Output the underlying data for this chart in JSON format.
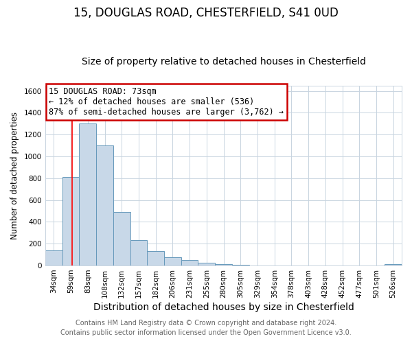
{
  "title": "15, DOUGLAS ROAD, CHESTERFIELD, S41 0UD",
  "subtitle": "Size of property relative to detached houses in Chesterfield",
  "xlabel": "Distribution of detached houses by size in Chesterfield",
  "ylabel": "Number of detached properties",
  "bar_labels": [
    "34sqm",
    "59sqm",
    "83sqm",
    "108sqm",
    "132sqm",
    "157sqm",
    "182sqm",
    "206sqm",
    "231sqm",
    "255sqm",
    "280sqm",
    "305sqm",
    "329sqm",
    "354sqm",
    "378sqm",
    "403sqm",
    "428sqm",
    "452sqm",
    "477sqm",
    "501sqm",
    "526sqm"
  ],
  "bar_values": [
    140,
    810,
    1300,
    1100,
    490,
    235,
    130,
    75,
    50,
    25,
    15,
    5,
    0,
    0,
    0,
    0,
    0,
    0,
    0,
    0,
    10
  ],
  "bar_color": "#c8d8e8",
  "bar_edge_color": "#6699bb",
  "ylim": [
    0,
    1650
  ],
  "yticks": [
    0,
    200,
    400,
    600,
    800,
    1000,
    1200,
    1400,
    1600
  ],
  "annotation_title": "15 DOUGLAS ROAD: 73sqm",
  "annotation_line1": "← 12% of detached houses are smaller (536)",
  "annotation_line2": "87% of semi-detached houses are larger (3,762) →",
  "annotation_box_color": "#ffffff",
  "annotation_box_edge": "#cc0000",
  "footer_line1": "Contains HM Land Registry data © Crown copyright and database right 2024.",
  "footer_line2": "Contains public sector information licensed under the Open Government Licence v3.0.",
  "background_color": "#ffffff",
  "plot_bg_color": "#ffffff",
  "grid_color": "#c8d4e0",
  "title_fontsize": 12,
  "subtitle_fontsize": 10,
  "xlabel_fontsize": 10,
  "ylabel_fontsize": 8.5,
  "tick_fontsize": 7.5,
  "annotation_fontsize": 8.5,
  "footer_fontsize": 7
}
